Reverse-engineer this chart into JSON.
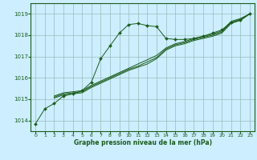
{
  "xlabel": "Graphe pression niveau de la mer (hPa)",
  "background_color": "#cceeff",
  "grid_color": "#99bbbb",
  "line_color": "#1a5c1a",
  "ylim": [
    1013.5,
    1019.5
  ],
  "xlim": [
    -0.5,
    23.5
  ],
  "yticks": [
    1014,
    1015,
    1016,
    1017,
    1018,
    1019
  ],
  "xticks": [
    0,
    1,
    2,
    3,
    4,
    5,
    6,
    7,
    8,
    9,
    10,
    11,
    12,
    13,
    14,
    15,
    16,
    17,
    18,
    19,
    20,
    21,
    22,
    23
  ],
  "series1_x": [
    0,
    1,
    2,
    3,
    4,
    5,
    6,
    7,
    8,
    9,
    10,
    11,
    12,
    13,
    14,
    15,
    16,
    17,
    18,
    19,
    20,
    21,
    22,
    23
  ],
  "series1_y": [
    1013.85,
    1014.55,
    1014.8,
    1015.15,
    1015.25,
    1015.4,
    1015.8,
    1016.9,
    1017.5,
    1018.1,
    1018.5,
    1018.55,
    1018.45,
    1018.4,
    1017.85,
    1017.8,
    1017.8,
    1017.85,
    1017.95,
    1018.1,
    1018.25,
    1018.6,
    1018.7,
    1019.0
  ],
  "series2_x": [
    2,
    3,
    4,
    5,
    6,
    7,
    8,
    9,
    10,
    11,
    12,
    13,
    14,
    15,
    16,
    17,
    18,
    19,
    20,
    21,
    22,
    23
  ],
  "series2_y": [
    1015.05,
    1015.2,
    1015.25,
    1015.3,
    1015.55,
    1015.75,
    1015.95,
    1016.15,
    1016.35,
    1016.5,
    1016.65,
    1016.9,
    1017.3,
    1017.5,
    1017.6,
    1017.75,
    1017.85,
    1017.95,
    1018.1,
    1018.55,
    1018.7,
    1019.0
  ],
  "series3_x": [
    2,
    3,
    4,
    5,
    6,
    7,
    8,
    9,
    10,
    11,
    12,
    13,
    14,
    15,
    16,
    17,
    18,
    19,
    20,
    21,
    22,
    23
  ],
  "series3_y": [
    1015.1,
    1015.25,
    1015.3,
    1015.35,
    1015.6,
    1015.8,
    1016.0,
    1016.2,
    1016.4,
    1016.55,
    1016.75,
    1016.95,
    1017.35,
    1017.55,
    1017.65,
    1017.8,
    1017.9,
    1018.0,
    1018.15,
    1018.6,
    1018.75,
    1019.0
  ],
  "series4_x": [
    2,
    3,
    4,
    5,
    6,
    7,
    8,
    9,
    10,
    11,
    12,
    13,
    14,
    15,
    16,
    17,
    18,
    19,
    20,
    21,
    22,
    23
  ],
  "series4_y": [
    1015.15,
    1015.3,
    1015.35,
    1015.4,
    1015.65,
    1015.85,
    1016.05,
    1016.25,
    1016.45,
    1016.65,
    1016.85,
    1017.05,
    1017.4,
    1017.6,
    1017.7,
    1017.85,
    1017.95,
    1018.05,
    1018.2,
    1018.65,
    1018.78,
    1019.0
  ]
}
